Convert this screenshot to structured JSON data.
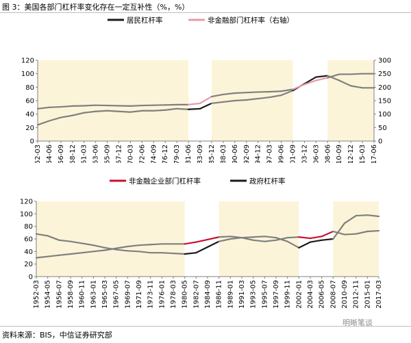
{
  "figure": {
    "title": "图 3：美国各部门杠杆率变化存在一定互补性（%，%）",
    "source": "资料来源：BIS，中信证券研究部",
    "watermark": "明晰笔谈"
  },
  "colors": {
    "band": "#fcf4d9",
    "gray_line": "#7f7f7f",
    "black_line": "#1a1a1a",
    "pink_line": "#e89aa6",
    "red_line": "#c8102e"
  },
  "chart_data": [
    {
      "type": "line",
      "legend_position": "top",
      "grid": false,
      "x": [
        "1952-03",
        "1954-06",
        "1956-09",
        "1958-12",
        "1961-03",
        "1963-06",
        "1965-09",
        "1967-12",
        "1970-03",
        "1972-06",
        "1974-09",
        "1976-12",
        "1979-03",
        "1981-06",
        "1983-09",
        "1985-12",
        "1988-03",
        "1990-06",
        "1992-09",
        "1994-12",
        "1997-03",
        "1999-06",
        "2001-09",
        "2003-12",
        "2006-03",
        "2008-06",
        "2010-09",
        "2012-12",
        "2015-03",
        "2017-06"
      ],
      "ylim_left": [
        0,
        120
      ],
      "ylim_right": [
        0,
        300
      ],
      "yticks_left": [
        0,
        20,
        40,
        60,
        80,
        100,
        120
      ],
      "yticks_right": [
        0,
        50,
        100,
        150,
        200,
        250,
        300
      ],
      "shaded_periods": [
        [
          "1952-03",
          "1981-06"
        ],
        [
          "1985-12",
          "2001-09"
        ],
        [
          "2008-06",
          "2017-06"
        ]
      ],
      "series": [
        {
          "name": "居民杠杆率",
          "axis": "left",
          "color": "#1a1a1a",
          "values": [
            24,
            30,
            35,
            38,
            42,
            44,
            45,
            44,
            43,
            45,
            45,
            46,
            48,
            47,
            48,
            56,
            58,
            60,
            61,
            63,
            65,
            68,
            75,
            85,
            95,
            97,
            90,
            82,
            79,
            79
          ]
        },
        {
          "name": "非金融部门杠杆率（右轴）",
          "axis": "right",
          "color": "#e89aa6",
          "values": [
            120,
            125,
            127,
            130,
            131,
            133,
            132,
            131,
            130,
            132,
            133,
            134,
            135,
            135,
            140,
            165,
            173,
            178,
            180,
            182,
            183,
            185,
            192,
            210,
            225,
            235,
            248,
            248,
            250,
            250
          ]
        }
      ]
    },
    {
      "type": "line",
      "legend_position": "top",
      "grid": false,
      "x": [
        "1952-03",
        "1954-05",
        "1956-07",
        "1958-09",
        "1960-11",
        "1963-01",
        "1965-03",
        "1967-05",
        "1969-07",
        "1971-09",
        "1973-11",
        "1976-01",
        "1978-03",
        "1980-05",
        "1982-07",
        "1984-09",
        "1986-11",
        "1989-01",
        "1991-03",
        "1993-05",
        "1995-07",
        "1997-09",
        "1999-11",
        "2002-01",
        "2004-03",
        "2006-05",
        "2008-07",
        "2010-09",
        "2012-11",
        "2015-01",
        "2017-03"
      ],
      "ylim": [
        0,
        120
      ],
      "yticks": [
        0,
        20,
        40,
        60,
        80,
        100,
        120
      ],
      "shaded_periods": [
        [
          "1952-03",
          "1980-05"
        ],
        [
          "1986-11",
          "2002-01"
        ],
        [
          "2008-07",
          "2017-03"
        ]
      ],
      "series": [
        {
          "name": "非金融企业部门杠杆率",
          "color": "#c8102e",
          "values": [
            30,
            32,
            34,
            36,
            38,
            40,
            42,
            45,
            48,
            50,
            51,
            52,
            52,
            52,
            55,
            59,
            63,
            64,
            62,
            58,
            56,
            58,
            62,
            63,
            61,
            64,
            72,
            67,
            68,
            72,
            73
          ]
        },
        {
          "name": "政府杠杆率",
          "color": "#1a1a1a",
          "values": [
            68,
            65,
            58,
            56,
            53,
            50,
            46,
            43,
            41,
            40,
            38,
            38,
            37,
            36,
            38,
            47,
            56,
            60,
            62,
            63,
            64,
            62,
            56,
            46,
            55,
            58,
            60,
            85,
            97,
            98,
            96
          ]
        }
      ]
    }
  ]
}
